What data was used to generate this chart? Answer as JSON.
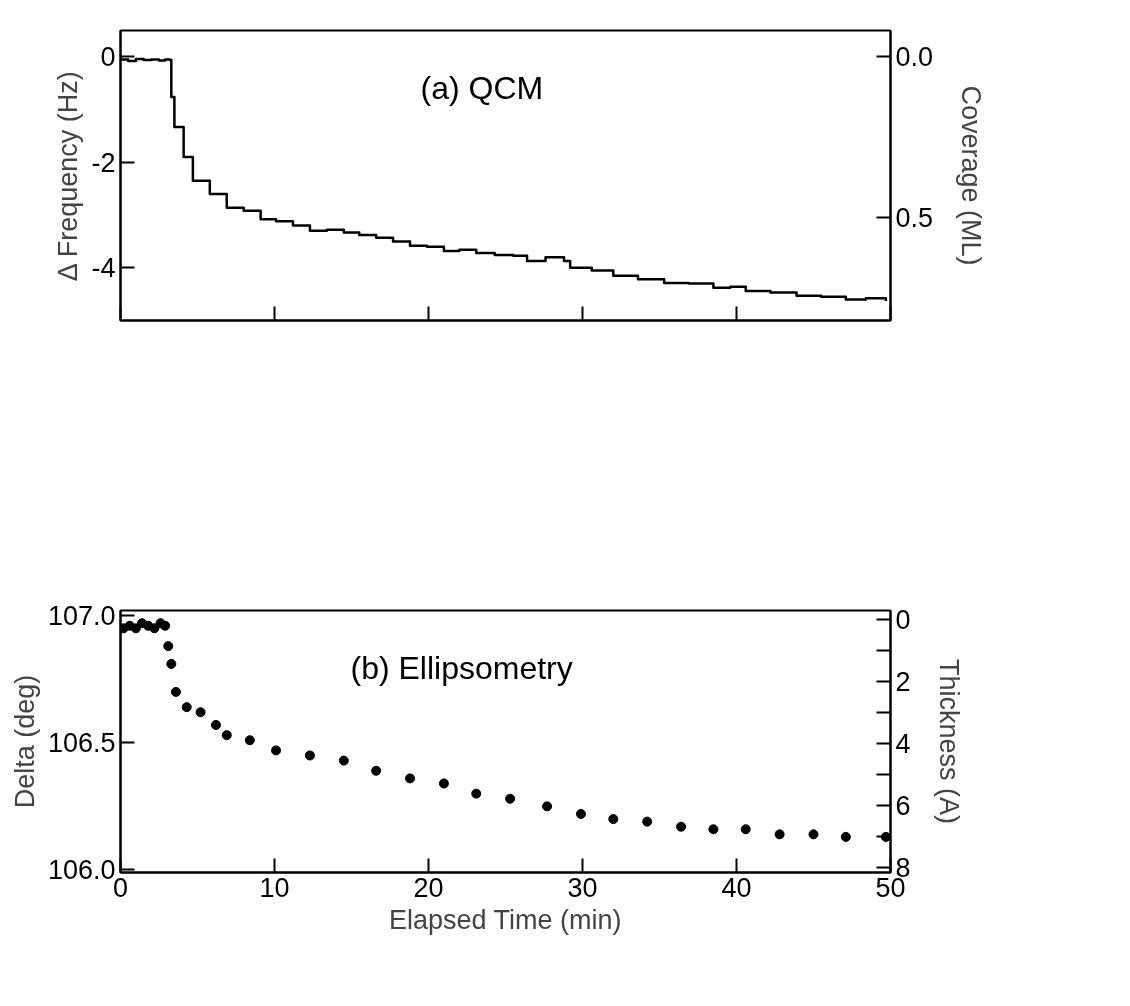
{
  "chart_data": [
    {
      "type": "step",
      "ylabel": "Δ Frequency (Hz)",
      "y2label": "Coverage (ML)",
      "annotations": [
        "(a) QCM"
      ],
      "xlim": [
        0,
        50
      ],
      "xticks": [
        {
          "value": 0,
          "label": null
        },
        {
          "value": 10,
          "label": null
        },
        {
          "value": 20,
          "label": null
        },
        {
          "value": 30,
          "label": null
        },
        {
          "value": 40,
          "label": null
        },
        {
          "value": 50,
          "label": null
        }
      ],
      "ylim": [
        -5,
        0.5
      ],
      "yticks": [
        0,
        -2,
        -4
      ],
      "y2lim": [
        0.82,
        -0.08
      ],
      "y2ticks": [
        {
          "value": 0,
          "label": "0.0"
        },
        {
          "value": 0.5,
          "label": "0.5"
        }
      ],
      "tick_labels": "y",
      "grid": false,
      "series": [
        {
          "color": "#000000",
          "x": [
            0,
            0.5,
            1.0,
            1.5,
            2.0,
            2.5,
            2.9,
            3.2,
            3.3,
            3.5,
            4.1,
            4.7,
            5.8,
            6.9,
            8.0,
            9.1,
            10.1,
            11.2,
            12.3,
            13.4,
            14.5,
            15.5,
            16.6,
            17.7,
            18.8,
            19.9,
            21.0,
            22.0,
            23.1,
            24.3,
            25.5,
            26.4,
            27.6,
            28.8,
            29.2,
            30.6,
            32.0,
            33.6,
            35.3,
            36.9,
            38.5,
            39.6,
            40.6,
            42.2,
            43.9,
            45.5,
            47.1,
            48.4,
            49.7
          ],
          "values": [
            -0.05,
            -0.08,
            -0.04,
            -0.06,
            -0.05,
            -0.07,
            -0.05,
            -0.06,
            -0.76,
            -1.33,
            -1.9,
            -2.35,
            -2.6,
            -2.86,
            -2.92,
            -3.08,
            -3.12,
            -3.2,
            -3.3,
            -3.28,
            -3.33,
            -3.38,
            -3.43,
            -3.5,
            -3.58,
            -3.6,
            -3.68,
            -3.66,
            -3.72,
            -3.76,
            -3.77,
            -3.87,
            -3.8,
            -3.87,
            -4.0,
            -4.05,
            -4.15,
            -4.22,
            -4.29,
            -4.3,
            -4.38,
            -4.36,
            -4.44,
            -4.47,
            -4.53,
            -4.55,
            -4.6,
            -4.58,
            -4.63
          ]
        }
      ]
    },
    {
      "type": "scatter",
      "xlabel": "Elapsed Time (min)",
      "ylabel": "Delta (deg)",
      "y2label": "Thickness (A)",
      "annotations": [
        "(b) Ellipsometry"
      ],
      "xlim": [
        0,
        50
      ],
      "xticks": [
        0,
        10,
        20,
        30,
        40,
        50
      ],
      "ylim": [
        105.99,
        107.02
      ],
      "yticks": [
        {
          "value": 106.0,
          "label": "106.0"
        },
        {
          "value": 106.5,
          "label": "106.5"
        },
        {
          "value": 107.0,
          "label": "107.0"
        }
      ],
      "y2lim": [
        8.16,
        -0.29
      ],
      "y2ticks": [
        0,
        {
          "value": 1,
          "label": null
        },
        2,
        {
          "value": 3,
          "label": null
        },
        4,
        {
          "value": 5,
          "label": null
        },
        6,
        {
          "value": 7,
          "label": null
        },
        8
      ],
      "grid": false,
      "marker": "circle",
      "series": [
        {
          "color": "#000000",
          "x": [
            0.2,
            0.6,
            1.0,
            1.4,
            1.8,
            2.2,
            2.6,
            2.9,
            3.1,
            3.3,
            3.6,
            4.3,
            5.2,
            6.2,
            6.9,
            8.4,
            10.1,
            12.3,
            14.5,
            16.6,
            18.8,
            21.0,
            23.1,
            25.3,
            27.7,
            29.9,
            32.0,
            34.2,
            36.4,
            38.5,
            40.6,
            42.8,
            45.0,
            47.1,
            49.7
          ],
          "values": [
            106.95,
            106.96,
            106.95,
            106.97,
            106.96,
            106.95,
            106.97,
            106.96,
            106.88,
            106.81,
            106.7,
            106.64,
            106.62,
            106.57,
            106.53,
            106.51,
            106.47,
            106.45,
            106.43,
            106.39,
            106.36,
            106.34,
            106.3,
            106.28,
            106.25,
            106.22,
            106.2,
            106.19,
            106.17,
            106.16,
            106.16,
            106.14,
            106.14,
            106.13,
            106.13
          ]
        }
      ]
    }
  ]
}
